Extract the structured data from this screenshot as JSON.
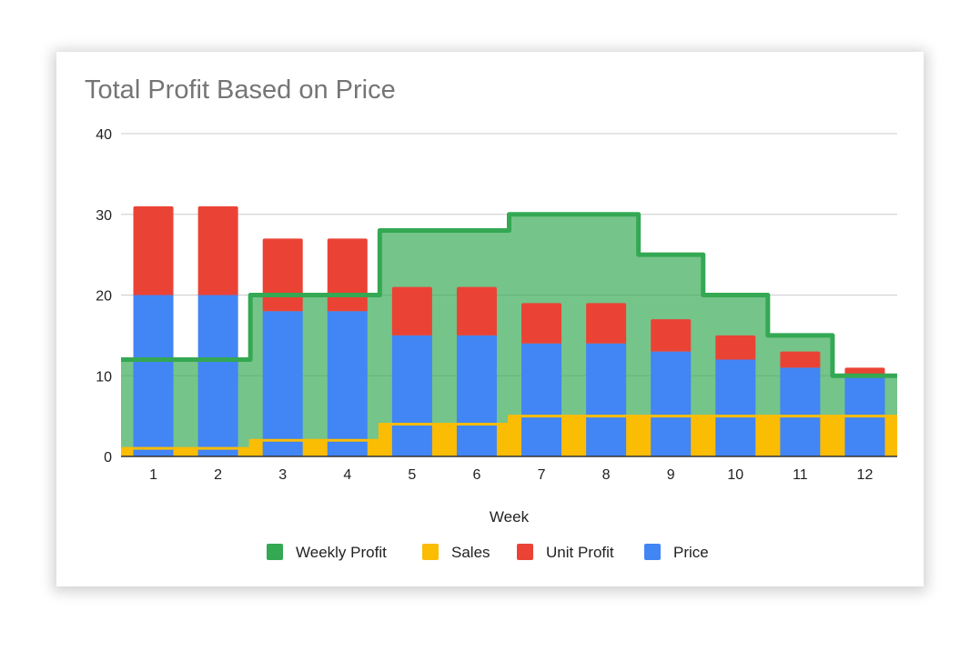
{
  "chart_data": {
    "type": "bar",
    "title": "Total Profit Based on Price",
    "xlabel": "Week",
    "ylabel": "",
    "ylim": [
      0,
      40
    ],
    "yticks": [
      0,
      10,
      20,
      30,
      40
    ],
    "grid": true,
    "legend_position": "bottom",
    "categories": [
      "1",
      "2",
      "3",
      "4",
      "5",
      "6",
      "7",
      "8",
      "9",
      "10",
      "11",
      "12"
    ],
    "series": [
      {
        "name": "Weekly Profit",
        "kind": "stepped-area",
        "color": "#34a853",
        "values": [
          12,
          12,
          20,
          20,
          28,
          28,
          30,
          30,
          25,
          20,
          15,
          10
        ]
      },
      {
        "name": "Sales",
        "kind": "stepped-area",
        "color": "#fbbc04",
        "values": [
          1,
          1,
          2,
          2,
          4,
          4,
          5,
          5,
          5,
          5,
          5,
          5
        ]
      },
      {
        "name": "Unit Profit",
        "kind": "stacked-bar",
        "color": "#ea4335",
        "values": [
          11,
          11,
          9,
          9,
          6,
          6,
          5,
          5,
          4,
          3,
          2,
          1
        ]
      },
      {
        "name": "Price",
        "kind": "stacked-bar",
        "color": "#4285f4",
        "values": [
          20,
          20,
          18,
          18,
          15,
          15,
          14,
          14,
          13,
          12,
          11,
          10
        ]
      }
    ]
  }
}
